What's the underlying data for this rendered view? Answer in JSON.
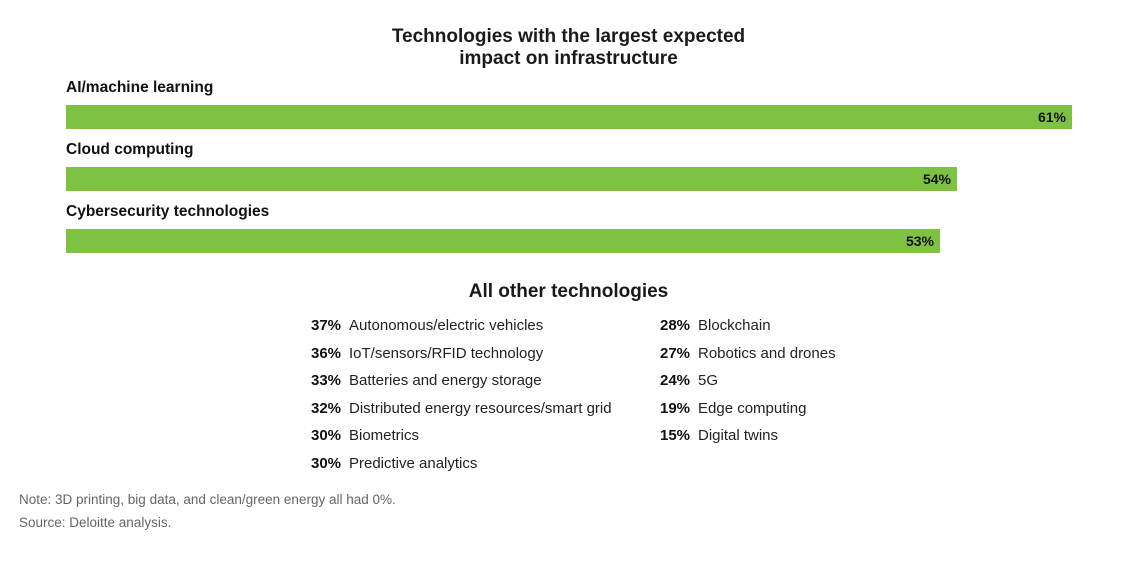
{
  "chart_data": {
    "type": "bar",
    "orientation": "horizontal",
    "title": "Technologies with the largest expected impact on infrastructure",
    "title_lines": [
      "Technologies with the largest expected",
      "impact on infrastructure"
    ],
    "categories": [
      "AI/machine learning",
      "Cloud computing",
      "Cybersecurity technologies"
    ],
    "values": [
      61,
      54,
      53
    ],
    "value_labels": [
      "61%",
      "54%",
      "53%"
    ],
    "xlim": [
      0,
      61
    ],
    "unit": "%",
    "bar_color": "#7dc242"
  },
  "others": {
    "title": "All other technologies",
    "left": [
      {
        "pct": "37%",
        "name": "Autonomous/electric vehicles"
      },
      {
        "pct": "36%",
        "name": "IoT/sensors/RFID technology"
      },
      {
        "pct": "33%",
        "name": "Batteries and energy storage"
      },
      {
        "pct": "32%",
        "name": "Distributed energy resources/smart grid"
      },
      {
        "pct": "30%",
        "name": "Biometrics"
      },
      {
        "pct": "30%",
        "name": "Predictive analytics"
      }
    ],
    "right": [
      {
        "pct": "28%",
        "name": "Blockchain"
      },
      {
        "pct": "27%",
        "name": "Robotics and drones"
      },
      {
        "pct": "24%",
        "name": "5G"
      },
      {
        "pct": "19%",
        "name": "Edge computing"
      },
      {
        "pct": "15%",
        "name": "Digital twins"
      }
    ]
  },
  "notes": {
    "note": "Note: 3D printing, big data, and clean/green energy all had 0%.",
    "source": "Source: Deloitte analysis."
  }
}
